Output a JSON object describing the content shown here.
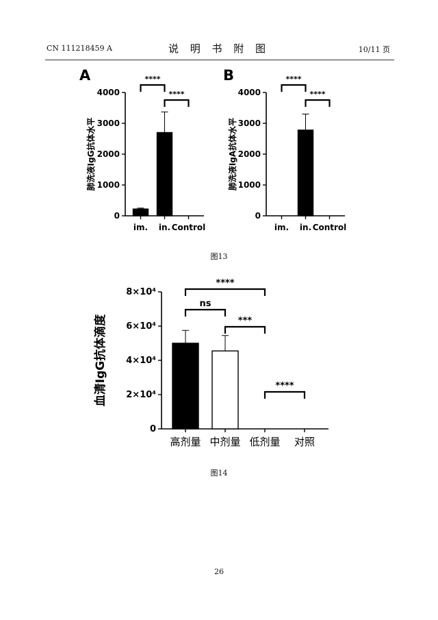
{
  "header": {
    "patent_no": "CN 111218459 A",
    "title": "说 明 书 附 图",
    "page": "10/11 页"
  },
  "captions": {
    "fig13": "图13",
    "fig14": "图14"
  },
  "footer": {
    "page_number": "26"
  },
  "chart_data": [
    {
      "type": "bar",
      "panel_label": "A",
      "ylabel": "肺洗液IgG抗体水平",
      "categories": [
        "im.",
        "in.",
        "Control"
      ],
      "values": [
        220,
        2700,
        0
      ],
      "errors": [
        30,
        670,
        0
      ],
      "bar_fill": "#000000",
      "ylim": [
        0,
        4000
      ],
      "yticks": [
        "0",
        "1000",
        "2000",
        "3000",
        "4000"
      ],
      "significance": [
        {
          "from": 0,
          "to": 1,
          "label": "****"
        },
        {
          "from": 1,
          "to": 2,
          "label": "****"
        }
      ]
    },
    {
      "type": "bar",
      "panel_label": "B",
      "ylabel": "肺洗液IgA抗体水平",
      "categories": [
        "im.",
        "in.",
        "Control"
      ],
      "values": [
        0,
        2780,
        0
      ],
      "errors": [
        0,
        520,
        0
      ],
      "bar_fill": "#000000",
      "ylim": [
        0,
        4000
      ],
      "yticks": [
        "0",
        "1000",
        "2000",
        "3000",
        "4000"
      ],
      "significance": [
        {
          "from": 0,
          "to": 1,
          "label": "****"
        },
        {
          "from": 1,
          "to": 2,
          "label": "****"
        }
      ]
    },
    {
      "type": "bar",
      "ylabel": "血清IgG抗体滴度",
      "categories": [
        "高剂量",
        "中剂量",
        "低剂量",
        "对照"
      ],
      "values": [
        50000,
        45500,
        0,
        0
      ],
      "errors": [
        7500,
        9000,
        0,
        0
      ],
      "bar_fills": [
        "#000000",
        "#ffffff",
        "#ffffff",
        "#ffffff"
      ],
      "ylim": [
        0,
        80000
      ],
      "yticks": [
        "0",
        "2×10⁴",
        "4×10⁴",
        "6×10⁴",
        "8×10⁴"
      ],
      "significance": [
        {
          "from": 0,
          "to": 2,
          "label": "****"
        },
        {
          "from": 0,
          "to": 1,
          "label": "ns"
        },
        {
          "from": 1,
          "to": 2,
          "label": "***"
        },
        {
          "from": 2,
          "to": 3,
          "label": "****"
        }
      ]
    }
  ]
}
